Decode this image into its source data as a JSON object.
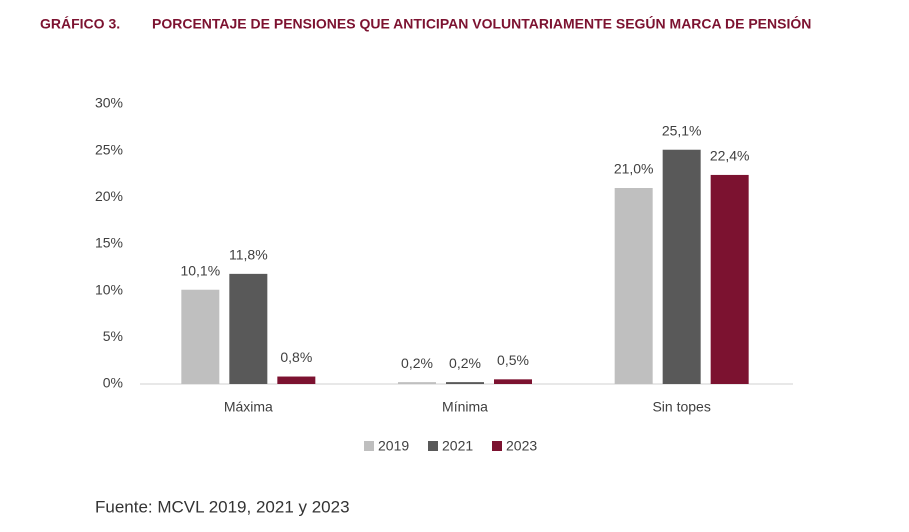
{
  "chart_data": {
    "type": "bar",
    "label": "GRÁFICO 3.",
    "title": "PORCENTAJE DE PENSIONES QUE ANTICIPAN VOLUNTARIAMENTE SEGÚN MARCA DE PENSIÓN",
    "categories": [
      "Máxima",
      "Mínima",
      "Sin topes"
    ],
    "series": [
      {
        "name": "2019",
        "color": "#bfbfbf",
        "values": [
          10.1,
          0.2,
          21.0
        ],
        "value_labels": [
          "10,1%",
          "0,2%",
          "21,0%"
        ]
      },
      {
        "name": "2021",
        "color": "#595959",
        "values": [
          11.8,
          0.2,
          25.1
        ],
        "value_labels": [
          "11,8%",
          "0,2%",
          "25,1%"
        ]
      },
      {
        "name": "2023",
        "color": "#7c1230",
        "values": [
          0.8,
          0.5,
          22.4
        ],
        "value_labels": [
          "0,8%",
          "0,5%",
          "22,4%"
        ]
      }
    ],
    "ylim": [
      0,
      30
    ],
    "yticks": [
      {
        "value": 0,
        "label": "0%"
      },
      {
        "value": 5,
        "label": "5%"
      },
      {
        "value": 10,
        "label": "10%"
      },
      {
        "value": 15,
        "label": "15%"
      },
      {
        "value": 20,
        "label": "20%"
      },
      {
        "value": 25,
        "label": "25%"
      },
      {
        "value": 30,
        "label": "30%"
      }
    ],
    "grid": false,
    "legend": "bottom",
    "source": "Fuente: MCVL 2019, 2021 y 2023"
  }
}
